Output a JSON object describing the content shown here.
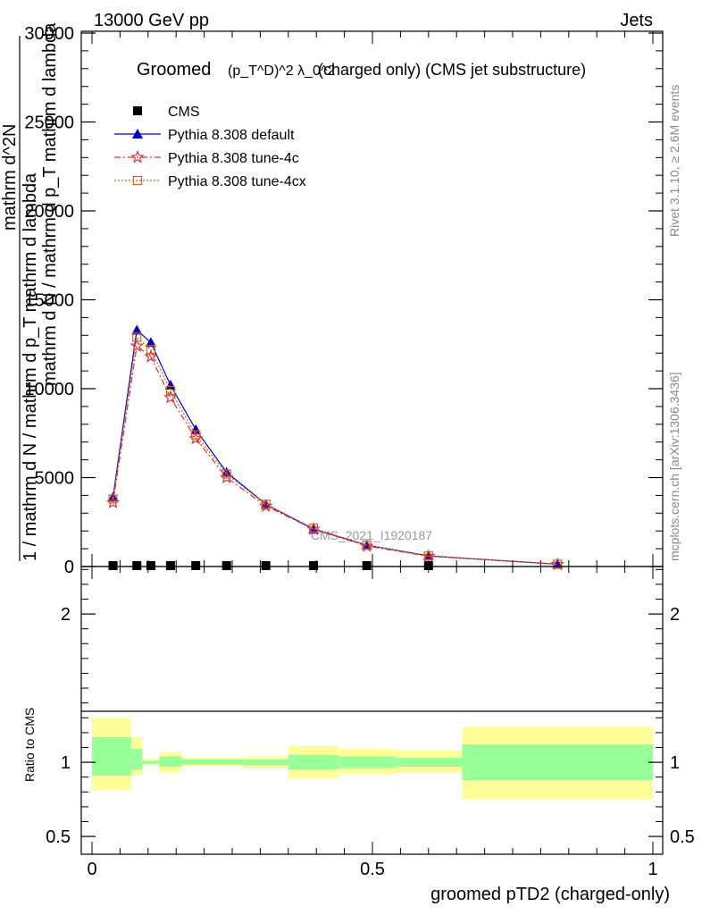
{
  "header": {
    "energy_label": "13000 GeV pp",
    "category_label": "Jets"
  },
  "side_labels": {
    "rivet": "Rivet 3.1.10, ≥ 2.6M events",
    "mcplots": "mcplots.cern.ch [arXiv:1306.3436]"
  },
  "chart_data": [
    {
      "type": "line",
      "title_prefix": "Groomed",
      "title_math": "(p_T^D)^2 λ_0^2",
      "title_suffix": "(charged only) (CMS jet substructure)",
      "watermark": "CMS_2021_I1920187",
      "ylabel_numerator": "mathrm d^2N",
      "ylabel_fraction": "1 / mathrm d N / mathrm d p_T mathrm d lambda",
      "ylabel_denominator": "mathrm d N / mathrm d p_T mathrm d lambda",
      "ylim": [
        0,
        30000
      ],
      "xlim": [
        0,
        1
      ],
      "yticks": [
        0,
        5000,
        10000,
        15000,
        20000,
        25000,
        30000
      ],
      "ytick_labels": [
        "0",
        "5000",
        "10000",
        "15000",
        "20000",
        "25000",
        "30000"
      ],
      "legend_position": "top-left",
      "series": [
        {
          "name": "CMS",
          "color": "#000000",
          "marker": "square",
          "x": [
            0.0375,
            0.08,
            0.105,
            0.14,
            0.185,
            0.24,
            0.31,
            0.395,
            0.49,
            0.6
          ],
          "values": [
            0,
            0,
            0,
            0,
            0,
            0,
            0,
            0,
            0,
            0
          ]
        },
        {
          "name": "Pythia 8.308 default",
          "color": "#0000cc",
          "marker": "triangle",
          "x": [
            0.0375,
            0.08,
            0.105,
            0.14,
            0.185,
            0.24,
            0.31,
            0.395,
            0.49,
            0.6,
            0.83
          ],
          "values": [
            3900,
            13300,
            12600,
            10200,
            7700,
            5300,
            3500,
            2100,
            1200,
            600,
            130
          ]
        },
        {
          "name": "Pythia 8.308 tune-4c",
          "color": "#dd3333",
          "marker": "star",
          "x": [
            0.0375,
            0.08,
            0.105,
            0.14,
            0.185,
            0.24,
            0.31,
            0.395,
            0.49,
            0.6,
            0.83
          ],
          "values": [
            3600,
            12400,
            11800,
            9500,
            7200,
            5000,
            3400,
            2100,
            1150,
            580,
            120
          ]
        },
        {
          "name": "Pythia 8.308 tune-4cx",
          "color": "#cc6622",
          "marker": "open-square",
          "x": [
            0.0375,
            0.08,
            0.105,
            0.14,
            0.185,
            0.24,
            0.31,
            0.395,
            0.49,
            0.6,
            0.83
          ],
          "values": [
            3800,
            12900,
            12200,
            9900,
            7400,
            5200,
            3500,
            2150,
            1200,
            600,
            125
          ]
        }
      ]
    },
    {
      "type": "area",
      "ylabel": "Ratio to CMS",
      "xlabel": "groomed pTD2 (charged-only)",
      "xlim": [
        0,
        1
      ],
      "ylim": [
        0.38,
        2.32
      ],
      "yticks": [
        0.5,
        1,
        2
      ],
      "ytick_labels": [
        "0.5",
        "1",
        "2"
      ],
      "xticks": [
        0,
        0.5,
        1
      ],
      "xtick_labels": [
        "0",
        "0.5",
        "1"
      ],
      "reference_line": 1,
      "band_colors": {
        "inner": "#99ff99",
        "outer": "#ffff99"
      },
      "bins": [
        {
          "x0": 0.0,
          "x1": 0.07,
          "outer": [
            0.81,
            1.3
          ],
          "inner": [
            0.91,
            1.17
          ]
        },
        {
          "x0": 0.07,
          "x1": 0.09,
          "outer": [
            0.91,
            1.17
          ],
          "inner": [
            0.95,
            1.09
          ]
        },
        {
          "x0": 0.09,
          "x1": 0.12,
          "outer": [
            0.98,
            1.02
          ],
          "inner": [
            0.99,
            1.01
          ]
        },
        {
          "x0": 0.12,
          "x1": 0.16,
          "outer": [
            0.93,
            1.07
          ],
          "inner": [
            0.97,
            1.04
          ]
        },
        {
          "x0": 0.16,
          "x1": 0.21,
          "outer": [
            0.97,
            1.03
          ],
          "inner": [
            0.985,
            1.02
          ]
        },
        {
          "x0": 0.21,
          "x1": 0.27,
          "outer": [
            0.97,
            1.03
          ],
          "inner": [
            0.985,
            1.02
          ]
        },
        {
          "x0": 0.27,
          "x1": 0.35,
          "outer": [
            0.96,
            1.04
          ],
          "inner": [
            0.98,
            1.02
          ]
        },
        {
          "x0": 0.35,
          "x1": 0.44,
          "outer": [
            0.89,
            1.11
          ],
          "inner": [
            0.95,
            1.05
          ]
        },
        {
          "x0": 0.44,
          "x1": 0.54,
          "outer": [
            0.92,
            1.09
          ],
          "inner": [
            0.96,
            1.04
          ]
        },
        {
          "x0": 0.54,
          "x1": 0.66,
          "outer": [
            0.93,
            1.08
          ],
          "inner": [
            0.97,
            1.03
          ]
        },
        {
          "x0": 0.66,
          "x1": 1.0,
          "outer": [
            0.75,
            1.24
          ],
          "inner": [
            0.88,
            1.12
          ]
        }
      ]
    }
  ]
}
